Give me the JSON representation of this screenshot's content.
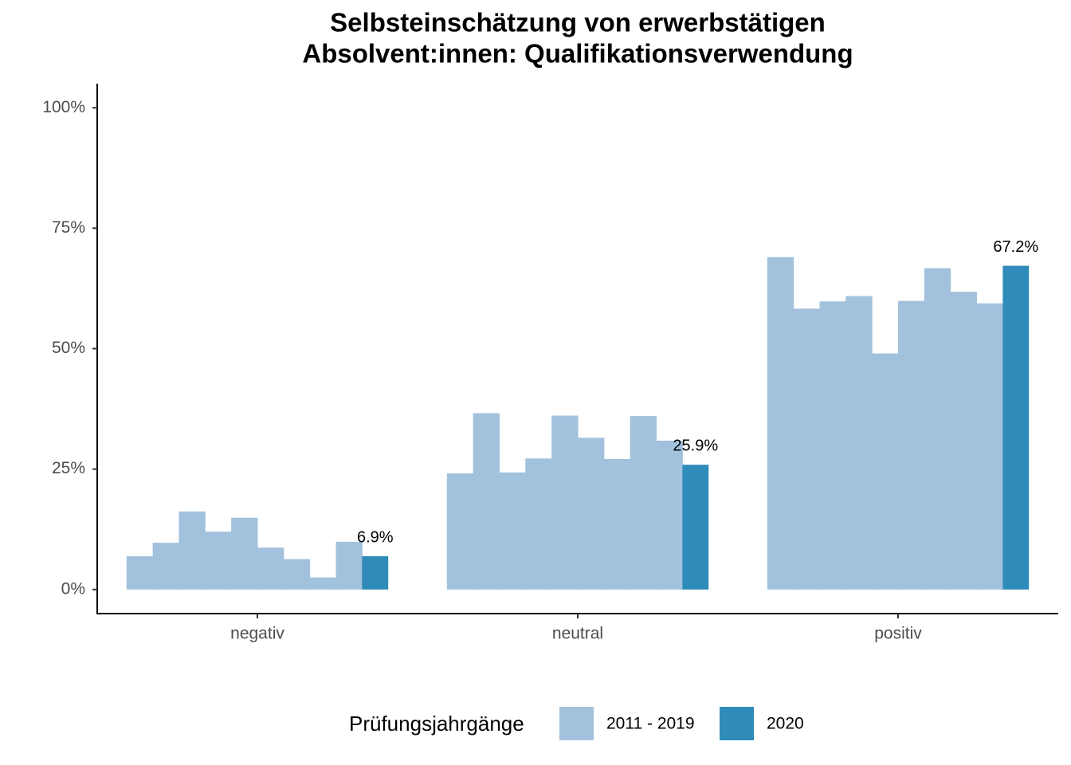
{
  "chart_data": {
    "type": "bar",
    "title": [
      "Selbsteinschätzung von erwerbstätigen",
      "Absolvent:innen: Qualifikationsverwendung"
    ],
    "categories": [
      "negativ",
      "neutral",
      "positiv"
    ],
    "series": [
      {
        "name": "2011 - 2019",
        "color": "#a2c1dd",
        "values": [
          [
            6.9,
            9.7,
            16.2,
            12.0,
            14.9,
            8.7,
            6.3,
            2.5,
            9.9
          ],
          [
            24.1,
            36.6,
            24.3,
            27.2,
            36.1,
            31.5,
            27.1,
            36.0,
            30.9
          ],
          [
            69.0,
            58.3,
            59.8,
            60.9,
            49.0,
            59.9,
            66.7,
            61.8,
            59.4
          ]
        ]
      },
      {
        "name": "2020",
        "color": "#2f8bb9",
        "values": [
          6.9,
          25.9,
          67.2
        ],
        "value_labels": [
          "6.9%",
          "25.9%",
          "67.2%"
        ]
      }
    ],
    "legend_title": "Prüfungsjahrgänge",
    "legend_position": "bottom",
    "ylim": [
      -5,
      105
    ],
    "yticks": [
      {
        "value": 0,
        "label": "0%"
      },
      {
        "value": 25,
        "label": "25%"
      },
      {
        "value": 50,
        "label": "50%"
      },
      {
        "value": 75,
        "label": "75%"
      },
      {
        "value": 100,
        "label": "100%"
      }
    ],
    "grid": false
  }
}
